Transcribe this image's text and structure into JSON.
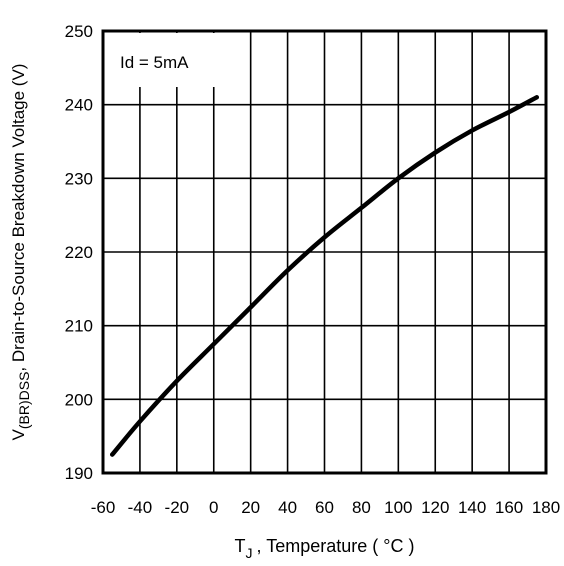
{
  "chart_data": {
    "type": "line",
    "title": "",
    "xlabel_main": "T",
    "xlabel_sub": "J",
    "xlabel_rest": ", Temperature ( °C )",
    "ylabel_main": "V",
    "ylabel_sub": "(BR)DSS",
    "ylabel_rest": ", Drain-to-Source Breakdown Voltage (V)",
    "annotation": "Id = 5mA",
    "xlim": [
      -60,
      180
    ],
    "ylim": [
      190,
      250
    ],
    "grid": true,
    "x_ticks": [
      -60,
      -40,
      -20,
      0,
      20,
      40,
      60,
      80,
      100,
      120,
      140,
      160,
      180
    ],
    "y_ticks": [
      190,
      200,
      210,
      220,
      230,
      240,
      250
    ],
    "series": [
      {
        "x": [
          -55,
          -40,
          -20,
          0,
          20,
          40,
          60,
          80,
          100,
          120,
          140,
          160,
          175
        ],
        "values": [
          192.5,
          197,
          202.5,
          207.5,
          212.5,
          217.5,
          222,
          226,
          230,
          233.5,
          236.5,
          239,
          241
        ]
      }
    ]
  }
}
